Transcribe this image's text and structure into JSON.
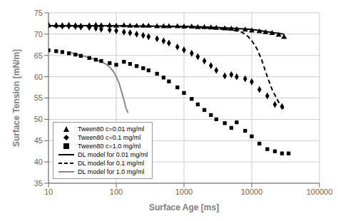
{
  "chart_data": {
    "type": "scatter",
    "xlabel": "Surface Age [ms]",
    "ylabel": "Surface Tension [mN/m]",
    "log": "x",
    "xlim": [
      10,
      100000
    ],
    "ylim": [
      35,
      75
    ],
    "xticks": [
      10,
      100,
      1000,
      10000,
      100000
    ],
    "yticks": [
      35,
      40,
      45,
      50,
      55,
      60,
      65,
      70,
      75
    ],
    "grid": true,
    "legend": "lower left",
    "series": [
      {
        "name": "Tween80 c=0.01 mg/ml",
        "type": "scatter",
        "marker": "triangle",
        "color": "black",
        "x": [
          10,
          13,
          16,
          20,
          25,
          30,
          40,
          50,
          60,
          80,
          100,
          130,
          160,
          200,
          250,
          300,
          400,
          500,
          600,
          800,
          1000,
          1300,
          1600,
          2000,
          2500,
          3000,
          4000,
          5000,
          6000,
          8000,
          10000,
          13000,
          16000,
          20000,
          25000,
          30000
        ],
        "values": [
          72.0,
          72.0,
          72.0,
          72.1,
          72.0,
          71.9,
          72.0,
          72.1,
          72.0,
          72.0,
          71.9,
          72.0,
          71.9,
          71.9,
          71.9,
          71.9,
          71.8,
          71.8,
          71.8,
          71.8,
          71.7,
          71.7,
          71.6,
          71.6,
          71.5,
          71.4,
          71.3,
          71.2,
          71.1,
          71.0,
          70.8,
          70.6,
          70.4,
          70.2,
          69.8,
          69.3
        ]
      },
      {
        "name": "Tween80 c=0.1 mg/ml",
        "type": "scatter",
        "marker": "diamond",
        "color": "black",
        "x": [
          10,
          13,
          16,
          20,
          25,
          30,
          40,
          50,
          60,
          80,
          100,
          130,
          160,
          200,
          250,
          300,
          400,
          500,
          600,
          800,
          1000,
          1300,
          1600,
          2000,
          2500,
          3000,
          4000,
          5000,
          6000,
          8000,
          10000,
          13000,
          17000,
          22000,
          28000
        ],
        "values": [
          72.1,
          72.0,
          71.9,
          71.9,
          71.8,
          71.7,
          71.6,
          71.4,
          71.2,
          71.0,
          70.8,
          70.5,
          70.3,
          70.0,
          69.7,
          69.4,
          68.9,
          68.4,
          67.9,
          67.0,
          66.3,
          65.5,
          64.7,
          63.7,
          62.6,
          61.5,
          60.2,
          60.5,
          60.0,
          59.5,
          58.8,
          57.0,
          55.5,
          53.5,
          53.0
        ]
      },
      {
        "name": "Tween80 c=1.0 mg/ml",
        "type": "scatter",
        "marker": "square",
        "color": "black",
        "x": [
          10,
          13,
          16,
          20,
          25,
          30,
          40,
          50,
          60,
          80,
          100,
          130,
          160,
          200,
          250,
          300,
          400,
          500,
          600,
          800,
          1000,
          1300,
          1600,
          2000,
          2500,
          3000,
          4000,
          5000,
          6000,
          8000,
          10000,
          13000,
          17000,
          22000,
          28000,
          35000
        ],
        "values": [
          66.2,
          66.0,
          65.8,
          65.5,
          65.2,
          64.9,
          64.4,
          64.0,
          63.7,
          63.2,
          62.8,
          63.5,
          63.0,
          62.5,
          62.0,
          61.5,
          60.7,
          59.8,
          58.9,
          57.5,
          56.2,
          54.8,
          53.5,
          52.2,
          51.0,
          50.0,
          49.1,
          48.0,
          49.3,
          47.3,
          46.0,
          44.3,
          43.0,
          42.5,
          42.0,
          42.0
        ]
      },
      {
        "name": "DL model for 0.01 mg/ml",
        "type": "line",
        "line_style": "solid",
        "color": "black",
        "x": [
          10,
          20,
          50,
          100,
          200,
          500,
          1000,
          2000,
          5000,
          10000,
          20000,
          30000
        ],
        "values": [
          72.0,
          72.0,
          72.0,
          71.95,
          71.9,
          71.85,
          71.8,
          71.7,
          71.4,
          71.1,
          70.4,
          70.0
        ]
      },
      {
        "name": "DL model for 0.1 mg/ml",
        "type": "line",
        "line_style": "dashed",
        "color": "black",
        "x": [
          10,
          20,
          50,
          100,
          200,
          500,
          1000,
          2000,
          3000,
          5000,
          7000,
          8000,
          9000,
          10000,
          12000,
          14000,
          17000,
          20000,
          25000,
          30000
        ],
        "values": [
          72.0,
          72.0,
          72.0,
          71.95,
          71.9,
          71.8,
          71.7,
          71.5,
          71.3,
          71.0,
          70.5,
          70.0,
          69.3,
          68.5,
          66.5,
          64.0,
          60.0,
          57.0,
          54.0,
          52.5
        ]
      },
      {
        "name": "DL model for 1.0 mg/ml",
        "type": "line",
        "line_style": "solid",
        "color": "#888888",
        "x": [
          20,
          25,
          30,
          40,
          50,
          60,
          70,
          80,
          90,
          100,
          110,
          120,
          130,
          140,
          150
        ],
        "values": [
          65.8,
          65.3,
          65.0,
          64.5,
          64.0,
          63.5,
          63.0,
          62.3,
          61.3,
          60.0,
          58.5,
          56.5,
          54.5,
          52.5,
          51.5
        ]
      }
    ]
  }
}
